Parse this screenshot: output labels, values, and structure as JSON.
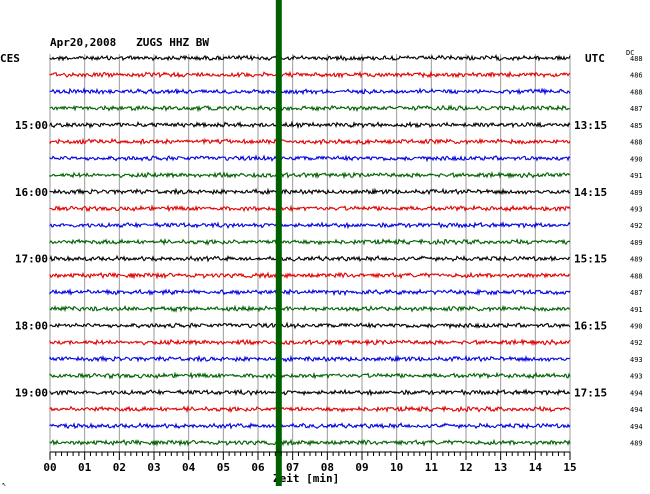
{
  "chart_data": {
    "type": "line",
    "title": "Apr20,2008   ZUGS HHZ BW",
    "left_axis_label": "CES",
    "right_axis_label": "UTC",
    "dc_label": "DC",
    "xlabel": "Zeit [min]",
    "xlim": [
      0,
      15
    ],
    "x_ticks": [
      "00",
      "01",
      "02",
      "03",
      "04",
      "05",
      "06",
      "07",
      "08",
      "09",
      "10",
      "11",
      "12",
      "13",
      "14",
      "15"
    ],
    "left_hour_labels": [
      {
        "label": "15:00",
        "trace": 4
      },
      {
        "label": "16:00",
        "trace": 8
      },
      {
        "label": "17:00",
        "trace": 12
      },
      {
        "label": "18:00",
        "trace": 16
      },
      {
        "label": "19:00",
        "trace": 20
      }
    ],
    "right_hour_labels": [
      {
        "label": "13:15",
        "trace": 4
      },
      {
        "label": "14:15",
        "trace": 8
      },
      {
        "label": "15:15",
        "trace": 12
      },
      {
        "label": "16:15",
        "trace": 16
      },
      {
        "label": "17:15",
        "trace": 20
      }
    ],
    "trace_colors": [
      "#000000",
      "#e00000",
      "#0000e0",
      "#006000"
    ],
    "dc_values": [
      "488",
      "486",
      "488",
      "487",
      "485",
      "488",
      "490",
      "491",
      "489",
      "493",
      "492",
      "489",
      "489",
      "488",
      "487",
      "491",
      "490",
      "492",
      "493",
      "493",
      "494",
      "494",
      "494",
      "489"
    ],
    "event_marker": {
      "minute": 6.6,
      "color": "#006000"
    },
    "corner_mark": "↖"
  }
}
